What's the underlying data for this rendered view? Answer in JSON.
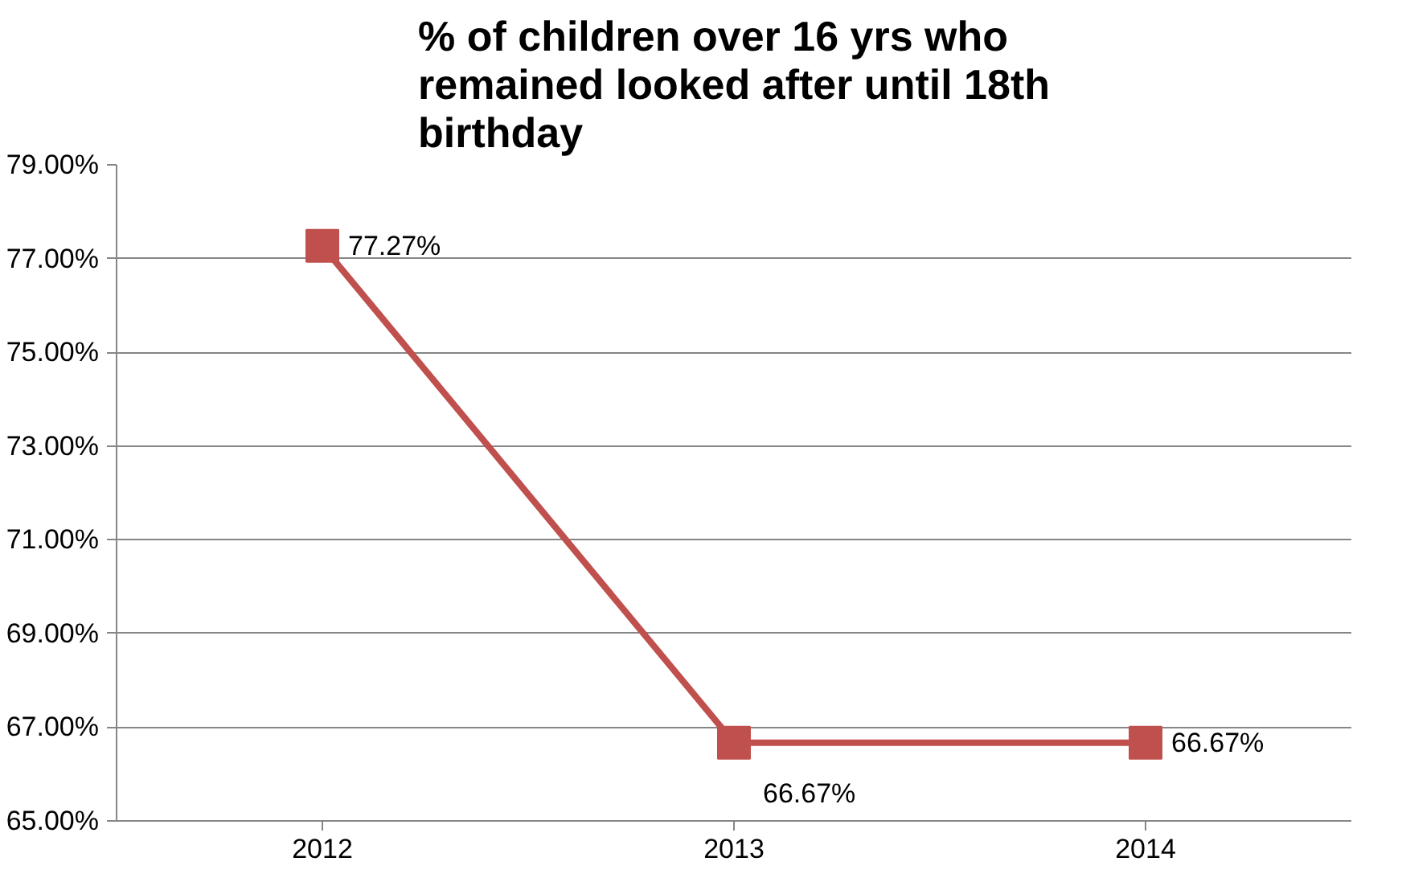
{
  "chart_data": {
    "type": "line",
    "title": "% of children over 16 yrs who remained looked after until 18th birthday",
    "categories": [
      "2012",
      "2013",
      "2014"
    ],
    "series": [
      {
        "color": "#c0504d",
        "values": [
          77.27,
          66.67,
          66.67
        ],
        "value_labels": [
          "77.27%",
          "66.67%",
          "66.67%"
        ]
      }
    ],
    "ylim": [
      65,
      79
    ],
    "yticks": [
      {
        "value": 65,
        "label": "65.00%"
      },
      {
        "value": 67,
        "label": "67.00%"
      },
      {
        "value": 69,
        "label": "69.00%"
      },
      {
        "value": 71,
        "label": "71.00%"
      },
      {
        "value": 73,
        "label": "73.00%"
      },
      {
        "value": 75,
        "label": "75.00%"
      },
      {
        "value": 77,
        "label": "77.00%"
      },
      {
        "value": 79,
        "label": "79.00%"
      }
    ],
    "grid": "y",
    "marker": "square",
    "line_style": "solid"
  }
}
